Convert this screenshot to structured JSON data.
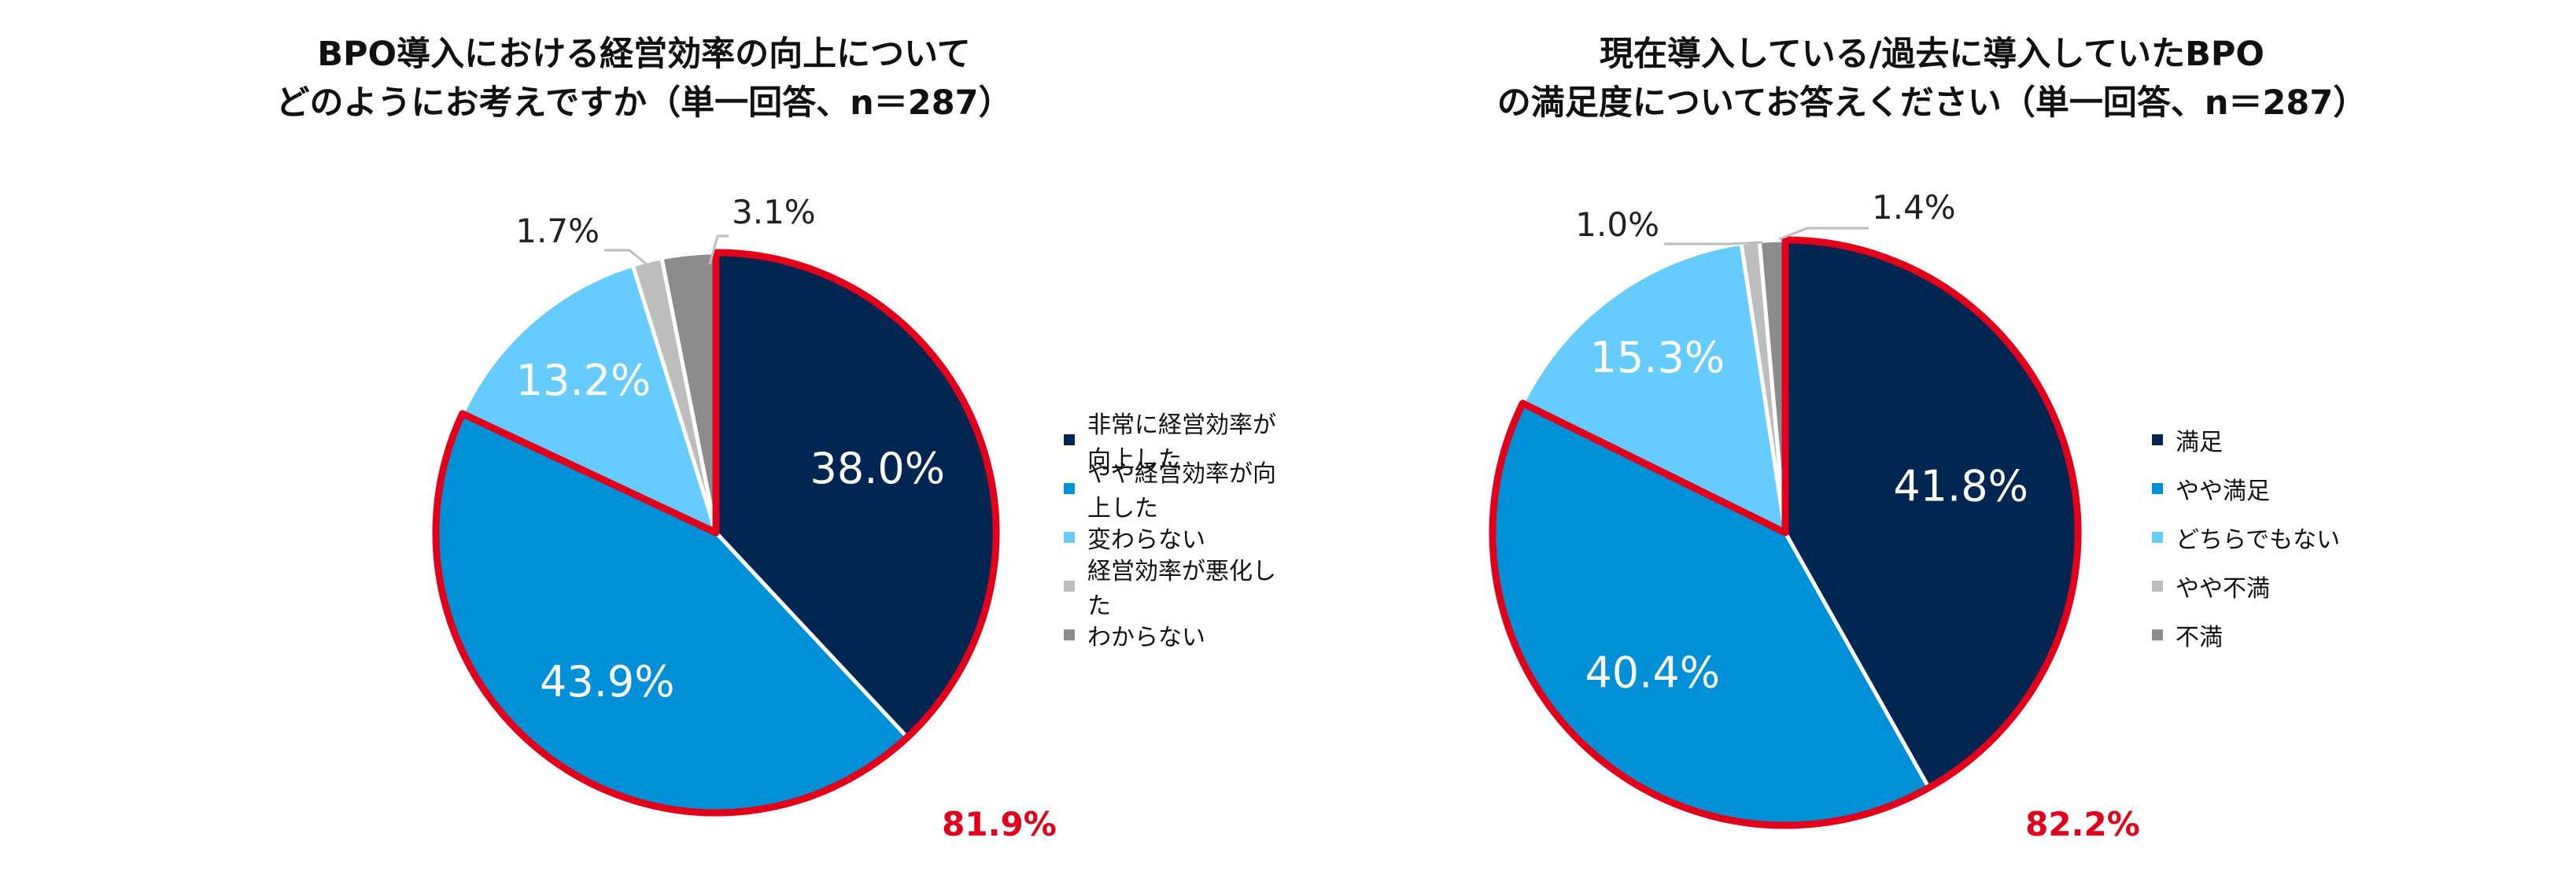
{
  "charts": [
    {
      "title_line1": "BPO導入における経営効率の向上について",
      "title_line2": "どのようにお考えですか（単一回答、n＝287）",
      "highlight_total": "81.9%"
    },
    {
      "title_line1": "現在導入している/過去に導入していたBPO",
      "title_line2": "の満足度についてお答えください（単一回答、n＝287）",
      "highlight_total": "82.2%"
    }
  ],
  "chart_data": [
    {
      "type": "pie",
      "title": "BPO導入における経営効率の向上について どのようにお考えですか（単一回答、n＝287）",
      "categories": [
        "非常に経営効率が向上した",
        "やや経営効率が向上した",
        "変わらない",
        "経営効率が悪化した",
        "わからない"
      ],
      "values": [
        38.0,
        43.9,
        13.2,
        1.7,
        3.1
      ],
      "labels": [
        "38.0%",
        "43.9%",
        "13.2%",
        "1.7%",
        "3.1%"
      ],
      "colors": [
        "#002651",
        "#0090d8",
        "#66ccff",
        "#bdbdbd",
        "#8c8c8c"
      ],
      "highlighted_slices": [
        0,
        1
      ],
      "highlight_color": "#e3001b",
      "highlight_label": "81.9%",
      "legend_position": "right"
    },
    {
      "type": "pie",
      "title": "現在導入している/過去に導入していたBPO の満足度についてお答えください（単一回答、n＝287）",
      "categories": [
        "満足",
        "やや満足",
        "どちらでもない",
        "やや不満",
        "不満"
      ],
      "values": [
        41.8,
        40.4,
        15.3,
        1.0,
        1.4
      ],
      "labels": [
        "41.8%",
        "40.4%",
        "15.3%",
        "1.0%",
        "1.4%"
      ],
      "colors": [
        "#002651",
        "#0090d8",
        "#66ccff",
        "#bdbdbd",
        "#8c8c8c"
      ],
      "highlighted_slices": [
        0,
        1
      ],
      "highlight_color": "#e3001b",
      "highlight_label": "82.2%",
      "legend_position": "right"
    }
  ]
}
